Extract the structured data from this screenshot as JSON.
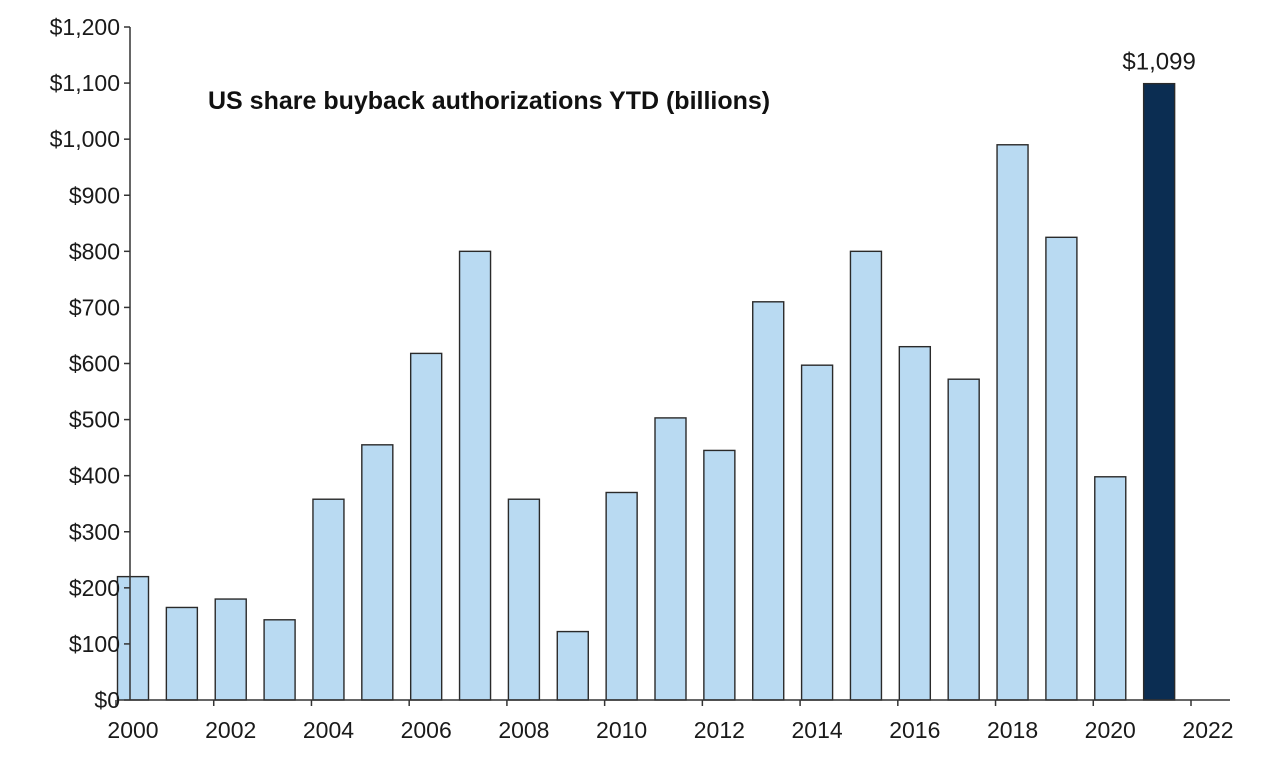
{
  "chart_data": {
    "type": "bar",
    "title": "US share buyback authorizations YTD (billions)",
    "xlabel": "",
    "ylabel": "",
    "categories": [
      "2000",
      "2001",
      "2002",
      "2003",
      "2004",
      "2005",
      "2006",
      "2007",
      "2008",
      "2009",
      "2010",
      "2011",
      "2012",
      "2013",
      "2014",
      "2015",
      "2016",
      "2017",
      "2018",
      "2019",
      "2020",
      "2021"
    ],
    "values": [
      220,
      165,
      180,
      143,
      358,
      455,
      618,
      800,
      358,
      122,
      370,
      503,
      445,
      710,
      597,
      800,
      630,
      572,
      990,
      825,
      398,
      1099
    ],
    "highlight_index": 21,
    "highlight_label": "$1,099",
    "ylim": [
      0,
      1200
    ],
    "y_ticks": [
      0,
      100,
      200,
      300,
      400,
      500,
      600,
      700,
      800,
      900,
      1000,
      1100,
      1200
    ],
    "y_tick_labels": [
      "$0",
      "$100",
      "$200",
      "$300",
      "$400",
      "$500",
      "$600",
      "$700",
      "$800",
      "$900",
      "$1,000",
      "$1,100",
      "$1,200"
    ],
    "x_ticks": [
      2000,
      2002,
      2004,
      2006,
      2008,
      2010,
      2012,
      2014,
      2016,
      2018,
      2020,
      2022
    ],
    "x_tick_labels": [
      "2000",
      "2002",
      "2004",
      "2006",
      "2008",
      "2010",
      "2012",
      "2014",
      "2016",
      "2018",
      "2020",
      "2022"
    ],
    "grid": false,
    "legend": "none",
    "colors": {
      "bar": "#b9daf2",
      "bar_stroke": "#2a2a2a",
      "highlight_bar": "#0b2d52",
      "axis": "#333333"
    }
  }
}
